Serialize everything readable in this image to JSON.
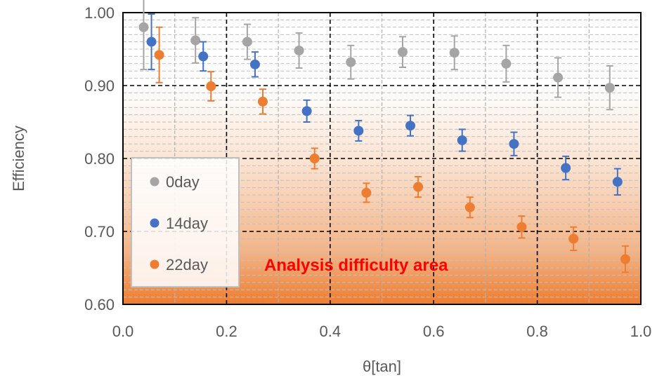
{
  "chart_data": {
    "type": "scatter",
    "xlabel": "θ[tan]",
    "ylabel": "Efficiency",
    "xlim": [
      0.0,
      1.0
    ],
    "ylim": [
      0.6,
      1.0
    ],
    "x_ticks": [
      "0.0",
      "0.2",
      "0.4",
      "0.6",
      "0.8",
      "1.0"
    ],
    "y_ticks": [
      "0.60",
      "0.70",
      "0.80",
      "0.90",
      "1.00"
    ],
    "grid": "on (dashed major and minor gridlines)",
    "legend_position": "left-center",
    "annotation": "Analysis difficulty area",
    "shaded_region": {
      "y_from": 0.6,
      "y_to": 0.9,
      "gradient": "white to orange (bottom)"
    },
    "series": [
      {
        "name": "0day",
        "color": "#a5a5a5",
        "x": [
          0.04,
          0.14,
          0.24,
          0.34,
          0.44,
          0.54,
          0.64,
          0.74,
          0.84,
          0.94
        ],
        "y": [
          0.98,
          0.962,
          0.96,
          0.948,
          0.932,
          0.946,
          0.945,
          0.93,
          0.911,
          0.897
        ],
        "err": [
          0.058,
          0.031,
          0.024,
          0.024,
          0.023,
          0.021,
          0.023,
          0.025,
          0.027,
          0.03
        ]
      },
      {
        "name": "14day",
        "color": "#4472c4",
        "x": [
          0.055,
          0.155,
          0.255,
          0.355,
          0.455,
          0.555,
          0.655,
          0.755,
          0.855,
          0.955
        ],
        "y": [
          0.96,
          0.94,
          0.929,
          0.865,
          0.838,
          0.845,
          0.825,
          0.82,
          0.787,
          0.768
        ],
        "err": [
          0.038,
          0.02,
          0.017,
          0.015,
          0.014,
          0.014,
          0.015,
          0.016,
          0.016,
          0.018
        ]
      },
      {
        "name": "22day",
        "color": "#ed7d31",
        "x": [
          0.07,
          0.17,
          0.27,
          0.37,
          0.47,
          0.57,
          0.67,
          0.77,
          0.87,
          0.97
        ],
        "y": [
          0.942,
          0.899,
          0.878,
          0.8,
          0.753,
          0.761,
          0.733,
          0.706,
          0.69,
          0.662
        ],
        "err": [
          0.038,
          0.02,
          0.017,
          0.014,
          0.013,
          0.014,
          0.014,
          0.015,
          0.016,
          0.018
        ]
      }
    ]
  }
}
